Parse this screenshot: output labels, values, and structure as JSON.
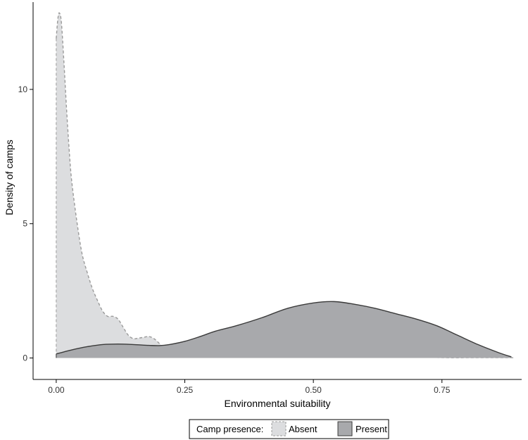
{
  "chart_data": {
    "type": "area",
    "xlabel": "Environmental suitability",
    "ylabel": "Density of camps",
    "xlim": [
      -0.045,
      0.905
    ],
    "ylim": [
      -0.8,
      13.25
    ],
    "x_ticks": [
      0.0,
      0.25,
      0.5,
      0.75
    ],
    "x_tick_labels": [
      "0.00",
      "0.25",
      "0.50",
      "0.75"
    ],
    "y_ticks": [
      0,
      5,
      10
    ],
    "y_tick_labels": [
      "0",
      "5",
      "10"
    ],
    "grid": false,
    "legend": {
      "title": "Camp presence:",
      "position": "bottom",
      "entries": [
        "Absent",
        "Present"
      ]
    },
    "series": [
      {
        "name": "Absent",
        "fill": "#dcdddf",
        "stroke": "#9a9a9a",
        "line_style": "dashed",
        "x": [
          0.0,
          0.003,
          0.006,
          0.01,
          0.015,
          0.02,
          0.025,
          0.03,
          0.04,
          0.05,
          0.06,
          0.07,
          0.08,
          0.09,
          0.1,
          0.11,
          0.12,
          0.13,
          0.14,
          0.15,
          0.16,
          0.17,
          0.18,
          0.19,
          0.2,
          0.21,
          0.22,
          0.23,
          0.24,
          0.25,
          0.27,
          0.29,
          0.3,
          0.31,
          0.33,
          0.35,
          0.37,
          0.4,
          0.43,
          0.46,
          0.48,
          0.5,
          0.51,
          0.53,
          0.55,
          0.57,
          0.6,
          0.62,
          0.65,
          0.68,
          0.7,
          0.73,
          0.76,
          0.8,
          0.85,
          0.89
        ],
        "y": [
          11.9,
          12.6,
          12.85,
          12.5,
          11.0,
          9.3,
          7.8,
          6.6,
          5.1,
          3.9,
          3.2,
          2.6,
          2.15,
          1.75,
          1.55,
          1.55,
          1.45,
          1.15,
          0.85,
          0.72,
          0.74,
          0.77,
          0.8,
          0.72,
          0.55,
          0.35,
          0.22,
          0.17,
          0.15,
          0.15,
          0.2,
          0.25,
          0.33,
          0.28,
          0.17,
          0.13,
          0.16,
          0.2,
          0.22,
          0.22,
          0.12,
          0.35,
          0.28,
          0.05,
          0.1,
          0.22,
          0.16,
          0.04,
          0.02,
          0.06,
          0.1,
          0.03,
          0.01,
          0.01,
          0.01,
          0.01
        ]
      },
      {
        "name": "Present",
        "fill": "#a8a9ac",
        "stroke": "#3a3a3a",
        "line_style": "solid",
        "x": [
          0.0,
          0.03,
          0.06,
          0.09,
          0.12,
          0.15,
          0.18,
          0.2,
          0.22,
          0.25,
          0.28,
          0.31,
          0.35,
          0.4,
          0.45,
          0.5,
          0.54,
          0.58,
          0.62,
          0.66,
          0.7,
          0.74,
          0.78,
          0.82,
          0.86,
          0.885
        ],
        "y": [
          0.15,
          0.3,
          0.42,
          0.5,
          0.52,
          0.5,
          0.47,
          0.46,
          0.5,
          0.62,
          0.8,
          1.0,
          1.2,
          1.5,
          1.85,
          2.05,
          2.1,
          2.0,
          1.85,
          1.65,
          1.45,
          1.2,
          0.85,
          0.5,
          0.2,
          0.04
        ]
      }
    ]
  }
}
